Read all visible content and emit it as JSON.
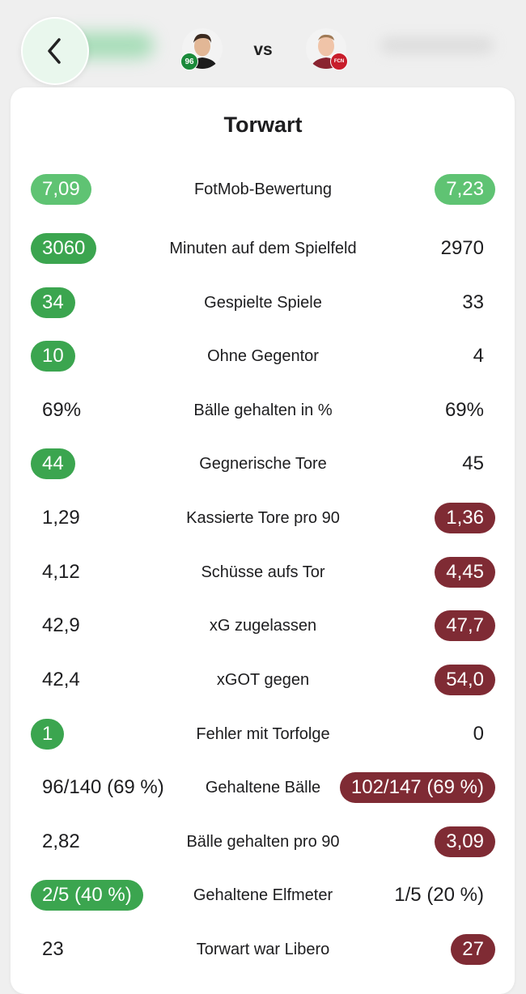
{
  "header": {
    "vs_label": "vs",
    "left_badge": "96",
    "right_badge": "FCN"
  },
  "section": {
    "title": "Torwart"
  },
  "stats": [
    {
      "label": "FotMob-Bewertung",
      "left": "7,09",
      "right": "7,23"
    },
    {
      "label": "Minuten auf dem Spielfeld",
      "left": "3060",
      "right": "2970"
    },
    {
      "label": "Gespielte Spiele",
      "left": "34",
      "right": "33"
    },
    {
      "label": "Ohne Gegentor",
      "left": "10",
      "right": "4"
    },
    {
      "label": "Bälle gehalten in %",
      "left": "69%",
      "right": "69%"
    },
    {
      "label": "Gegnerische Tore",
      "left": "44",
      "right": "45"
    },
    {
      "label": "Kassierte Tore pro 90",
      "left": "1,29",
      "right": "1,36"
    },
    {
      "label": "Schüsse aufs Tor",
      "left": "4,12",
      "right": "4,45"
    },
    {
      "label": "xG zugelassen",
      "left": "42,9",
      "right": "47,7"
    },
    {
      "label": "xGOT gegen",
      "left": "42,4",
      "right": "54,0"
    },
    {
      "label": "Fehler mit Torfolge",
      "left": "1",
      "right": "0"
    },
    {
      "label": "Gehaltene Bälle",
      "left": "96/140 (69 %)",
      "right": "102/147 (69 %)"
    },
    {
      "label": "Bälle gehalten pro 90",
      "left": "2,82",
      "right": "3,09"
    },
    {
      "label": "Gehaltene Elfmeter",
      "left": "2/5 (40 %)",
      "right": "1/5 (20 %)"
    },
    {
      "label": "Torwart war Libero",
      "left": "23",
      "right": "27"
    }
  ],
  "colors": {
    "better_highlight": "#3ba54f",
    "rating_highlight": "#5fc373",
    "worse_highlight": "#7f2b34"
  }
}
